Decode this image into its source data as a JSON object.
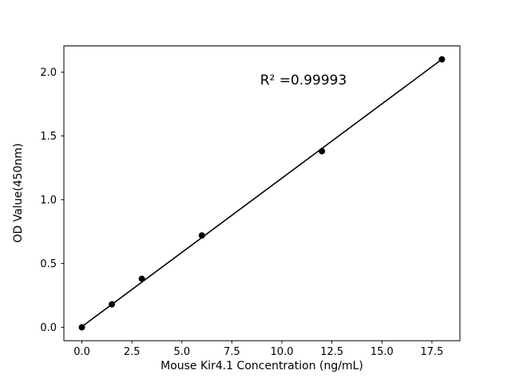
{
  "figure": {
    "background": "#ffffff"
  },
  "chart_data": {
    "type": "scatter",
    "xlabel": "Mouse Kir4.1 Concentration (ng/mL)",
    "ylabel": "OD Value(450nm)",
    "annotation": "R² =0.99993",
    "x": [
      0,
      1.5,
      3,
      6,
      12,
      18
    ],
    "y": [
      0.0,
      0.18,
      0.38,
      0.72,
      1.38,
      2.1
    ],
    "fit_line": {
      "x1": 0,
      "y1": 0.005,
      "x2": 18,
      "y2": 2.1
    },
    "xtick_labels": [
      "0.0",
      "2.5",
      "5.0",
      "7.5",
      "10.0",
      "12.5",
      "15.0",
      "17.5"
    ],
    "xtick_values": [
      0,
      2.5,
      5,
      7.5,
      10,
      12.5,
      15,
      17.5
    ],
    "ytick_labels": [
      "0.0",
      "0.5",
      "1.0",
      "1.5",
      "2.0"
    ],
    "ytick_values": [
      0,
      0.5,
      1,
      1.5,
      2
    ],
    "xlim": [
      -0.9,
      18.9
    ],
    "ylim": [
      -0.105,
      2.205
    ],
    "grid": false,
    "legend_position": "none",
    "marker_color": "#000000",
    "line_color": "#000000",
    "axis_color": "#000000"
  }
}
